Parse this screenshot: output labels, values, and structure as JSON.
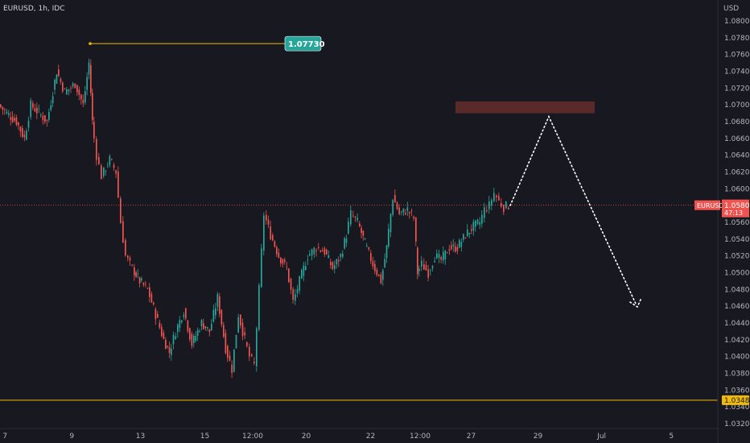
{
  "header": {
    "symbol_info": "EURUSD, 1h, IDC",
    "currency": "USD"
  },
  "colors": {
    "background": "#181820",
    "up": "#26a69a",
    "down": "#ef5350",
    "high_line": "#f0b90b",
    "support_line": "#f0b90b",
    "current_line": "#ef5350",
    "resistance_zone": "#5a2a2a"
  },
  "chart_data": {
    "type": "candlestick",
    "symbol": "EURUSD",
    "interval": "1h",
    "source": "IDC",
    "y_range": [
      1.031,
      1.0822
    ],
    "y_ticks": [
      "1.08000",
      "1.07800",
      "1.07600",
      "1.07400",
      "1.07200",
      "1.07000",
      "1.06800",
      "1.06600",
      "1.06400",
      "1.06200",
      "1.06000",
      "1.05600",
      "1.05400",
      "1.05200",
      "1.05000",
      "1.04800",
      "1.04600",
      "1.04400",
      "1.04200",
      "1.04000",
      "1.03800",
      "1.03600",
      "1.03400",
      "1.03200"
    ],
    "x_ticks": [
      "7",
      "9",
      "13",
      "15",
      "12:00",
      "20",
      "22",
      "12:00",
      "27",
      "29",
      "Jul",
      "5"
    ],
    "price_path": [
      {
        "x": 0,
        "p": 1.07
      },
      {
        "x": 10,
        "p": 1.069
      },
      {
        "x": 22,
        "p": 1.068
      },
      {
        "x": 32,
        "p": 1.066
      },
      {
        "x": 40,
        "p": 1.07
      },
      {
        "x": 50,
        "p": 1.069
      },
      {
        "x": 60,
        "p": 1.068
      },
      {
        "x": 72,
        "p": 1.074
      },
      {
        "x": 82,
        "p": 1.0715
      },
      {
        "x": 95,
        "p": 1.0725
      },
      {
        "x": 105,
        "p": 1.07
      },
      {
        "x": 112,
        "p": 1.075
      },
      {
        "x": 116,
        "p": 1.068
      },
      {
        "x": 122,
        "p": 1.064
      },
      {
        "x": 128,
        "p": 1.0615
      },
      {
        "x": 138,
        "p": 1.0635
      },
      {
        "x": 146,
        "p": 1.062
      },
      {
        "x": 152,
        "p": 1.056
      },
      {
        "x": 158,
        "p": 1.052
      },
      {
        "x": 166,
        "p": 1.0505
      },
      {
        "x": 175,
        "p": 1.049
      },
      {
        "x": 185,
        "p": 1.048
      },
      {
        "x": 195,
        "p": 1.045
      },
      {
        "x": 205,
        "p": 1.042
      },
      {
        "x": 212,
        "p": 1.0405
      },
      {
        "x": 220,
        "p": 1.043
      },
      {
        "x": 230,
        "p": 1.0455
      },
      {
        "x": 240,
        "p": 1.0415
      },
      {
        "x": 252,
        "p": 1.044
      },
      {
        "x": 262,
        "p": 1.043
      },
      {
        "x": 272,
        "p": 1.047
      },
      {
        "x": 282,
        "p": 1.041
      },
      {
        "x": 290,
        "p": 1.0385
      },
      {
        "x": 298,
        "p": 1.045
      },
      {
        "x": 306,
        "p": 1.042
      },
      {
        "x": 312,
        "p": 1.04
      },
      {
        "x": 318,
        "p": 1.039
      },
      {
        "x": 324,
        "p": 1.048
      },
      {
        "x": 330,
        "p": 1.057
      },
      {
        "x": 338,
        "p": 1.0545
      },
      {
        "x": 348,
        "p": 1.052
      },
      {
        "x": 358,
        "p": 1.0505
      },
      {
        "x": 366,
        "p": 1.0465
      },
      {
        "x": 374,
        "p": 1.049
      },
      {
        "x": 384,
        "p": 1.052
      },
      {
        "x": 395,
        "p": 1.053
      },
      {
        "x": 405,
        "p": 1.0525
      },
      {
        "x": 415,
        "p": 1.0505
      },
      {
        "x": 425,
        "p": 1.052
      },
      {
        "x": 432,
        "p": 1.0545
      },
      {
        "x": 438,
        "p": 1.057
      },
      {
        "x": 446,
        "p": 1.056
      },
      {
        "x": 455,
        "p": 1.0535
      },
      {
        "x": 465,
        "p": 1.051
      },
      {
        "x": 475,
        "p": 1.049
      },
      {
        "x": 482,
        "p": 1.053
      },
      {
        "x": 490,
        "p": 1.059
      },
      {
        "x": 498,
        "p": 1.057
      },
      {
        "x": 508,
        "p": 1.0575
      },
      {
        "x": 516,
        "p": 1.0565
      },
      {
        "x": 520,
        "p": 1.05
      },
      {
        "x": 526,
        "p": 1.051
      },
      {
        "x": 534,
        "p": 1.05
      },
      {
        "x": 542,
        "p": 1.052
      },
      {
        "x": 550,
        "p": 1.0515
      },
      {
        "x": 560,
        "p": 1.053
      },
      {
        "x": 570,
        "p": 1.053
      },
      {
        "x": 580,
        "p": 1.0545
      },
      {
        "x": 590,
        "p": 1.0555
      },
      {
        "x": 598,
        "p": 1.056
      },
      {
        "x": 604,
        "p": 1.0575
      },
      {
        "x": 610,
        "p": 1.058
      },
      {
        "x": 616,
        "p": 1.0595
      },
      {
        "x": 622,
        "p": 1.0585
      },
      {
        "x": 628,
        "p": 1.0578
      },
      {
        "x": 634,
        "p": 1.058
      }
    ],
    "high_marker": {
      "price": "1.07730",
      "value": 1.0773
    },
    "current_price": {
      "symbol": "EURUSD",
      "price": "1.05804",
      "countdown": "47:13",
      "value": 1.05804
    },
    "support_level": {
      "price": "1.03480",
      "value": 1.0348
    },
    "resistance_zone": {
      "from": 1.069,
      "to": 1.0704
    },
    "projection": [
      {
        "x": 634,
        "p": 1.058
      },
      {
        "x": 682,
        "p": 1.0686
      },
      {
        "x": 790,
        "p": 1.0463
      }
    ]
  }
}
